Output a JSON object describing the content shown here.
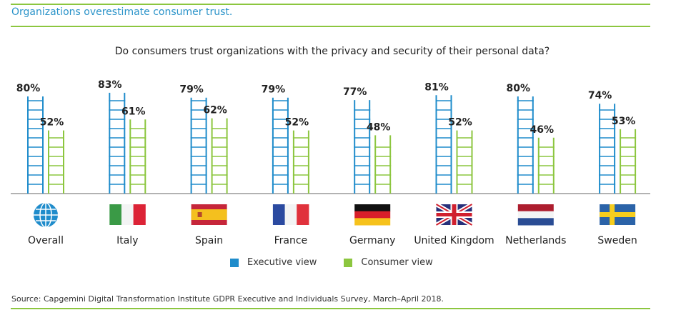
{
  "header": {
    "title": "Organizations overestimate consumer trust."
  },
  "chart_data": {
    "type": "bar",
    "title": "Do consumers trust organizations with the privacy and security of their personal data?",
    "categories": [
      "Overall",
      "Italy",
      "Spain",
      "France",
      "Germany",
      "United Kingdom",
      "Netherlands",
      "Sweden"
    ],
    "icons": [
      "globe-icon",
      "flag-italy",
      "flag-spain",
      "flag-france",
      "flag-germany",
      "flag-uk",
      "flag-netherlands",
      "flag-sweden"
    ],
    "series": [
      {
        "name": "Executive view",
        "color": "#1f8ccb",
        "values": [
          80,
          83,
          79,
          79,
          77,
          81,
          80,
          74
        ]
      },
      {
        "name": "Consumer view",
        "color": "#8cc63f",
        "values": [
          52,
          61,
          62,
          52,
          48,
          52,
          46,
          53
        ]
      }
    ],
    "ylim": [
      0,
      100
    ],
    "value_suffix": "%",
    "legend": "bottom"
  },
  "source": "Source: Capgemini Digital Transformation Institute GDPR Executive and Individuals Survey, March–April 2018."
}
